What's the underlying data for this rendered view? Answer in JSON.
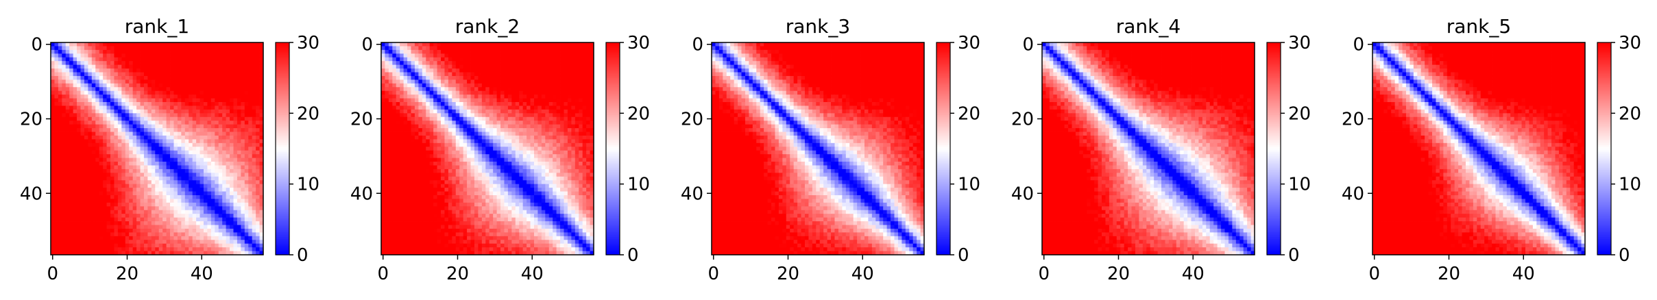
{
  "chart_data": [
    {
      "type": "heatmap",
      "title": "rank_1",
      "matrix_size": 57,
      "x_ticks": [
        "0",
        "20",
        "40"
      ],
      "y_ticks": [
        "0",
        "20",
        "40"
      ],
      "colorbar": {
        "min": 0,
        "max": 30,
        "ticks": [
          "0",
          "10",
          "20",
          "30"
        ],
        "colormap": "bwr"
      },
      "pattern": {
        "diag_width": 6.5,
        "blob_center": 38,
        "blob_width": 12,
        "blob_amp": 13,
        "scale": 0.11,
        "seed": 11
      }
    },
    {
      "type": "heatmap",
      "title": "rank_2",
      "matrix_size": 57,
      "x_ticks": [
        "0",
        "20",
        "40"
      ],
      "y_ticks": [
        "0",
        "20",
        "40"
      ],
      "colorbar": {
        "min": 0,
        "max": 30,
        "ticks": [
          "0",
          "10",
          "20",
          "30"
        ],
        "colormap": "bwr"
      },
      "pattern": {
        "diag_width": 6.0,
        "blob_center": 37,
        "blob_width": 12,
        "blob_amp": 12,
        "scale": 0.115,
        "seed": 23
      }
    },
    {
      "type": "heatmap",
      "title": "rank_3",
      "matrix_size": 57,
      "x_ticks": [
        "0",
        "20",
        "40"
      ],
      "y_ticks": [
        "0",
        "20",
        "40"
      ],
      "colorbar": {
        "min": 0,
        "max": 30,
        "ticks": [
          "0",
          "10",
          "20",
          "30"
        ],
        "colormap": "bwr"
      },
      "pattern": {
        "diag_width": 6.5,
        "blob_center": 36,
        "blob_width": 11,
        "blob_amp": 11,
        "scale": 0.118,
        "seed": 37
      }
    },
    {
      "type": "heatmap",
      "title": "rank_4",
      "matrix_size": 57,
      "x_ticks": [
        "0",
        "20",
        "40"
      ],
      "y_ticks": [
        "0",
        "20",
        "40"
      ],
      "colorbar": {
        "min": 0,
        "max": 30,
        "ticks": [
          "0",
          "10",
          "20",
          "30"
        ],
        "colormap": "bwr"
      },
      "pattern": {
        "diag_width": 6.0,
        "blob_center": 37,
        "blob_width": 13,
        "blob_amp": 13,
        "scale": 0.112,
        "seed": 41
      }
    },
    {
      "type": "heatmap",
      "title": "rank_5",
      "matrix_size": 57,
      "x_ticks": [
        "0",
        "20",
        "40"
      ],
      "y_ticks": [
        "0",
        "20",
        "40"
      ],
      "colorbar": {
        "min": 0,
        "max": 30,
        "ticks": [
          "0",
          "10",
          "20",
          "30"
        ],
        "colormap": "bwr"
      },
      "pattern": {
        "diag_width": 5.5,
        "blob_center": 36,
        "blob_width": 11,
        "blob_amp": 10,
        "scale": 0.12,
        "seed": 53
      }
    }
  ]
}
